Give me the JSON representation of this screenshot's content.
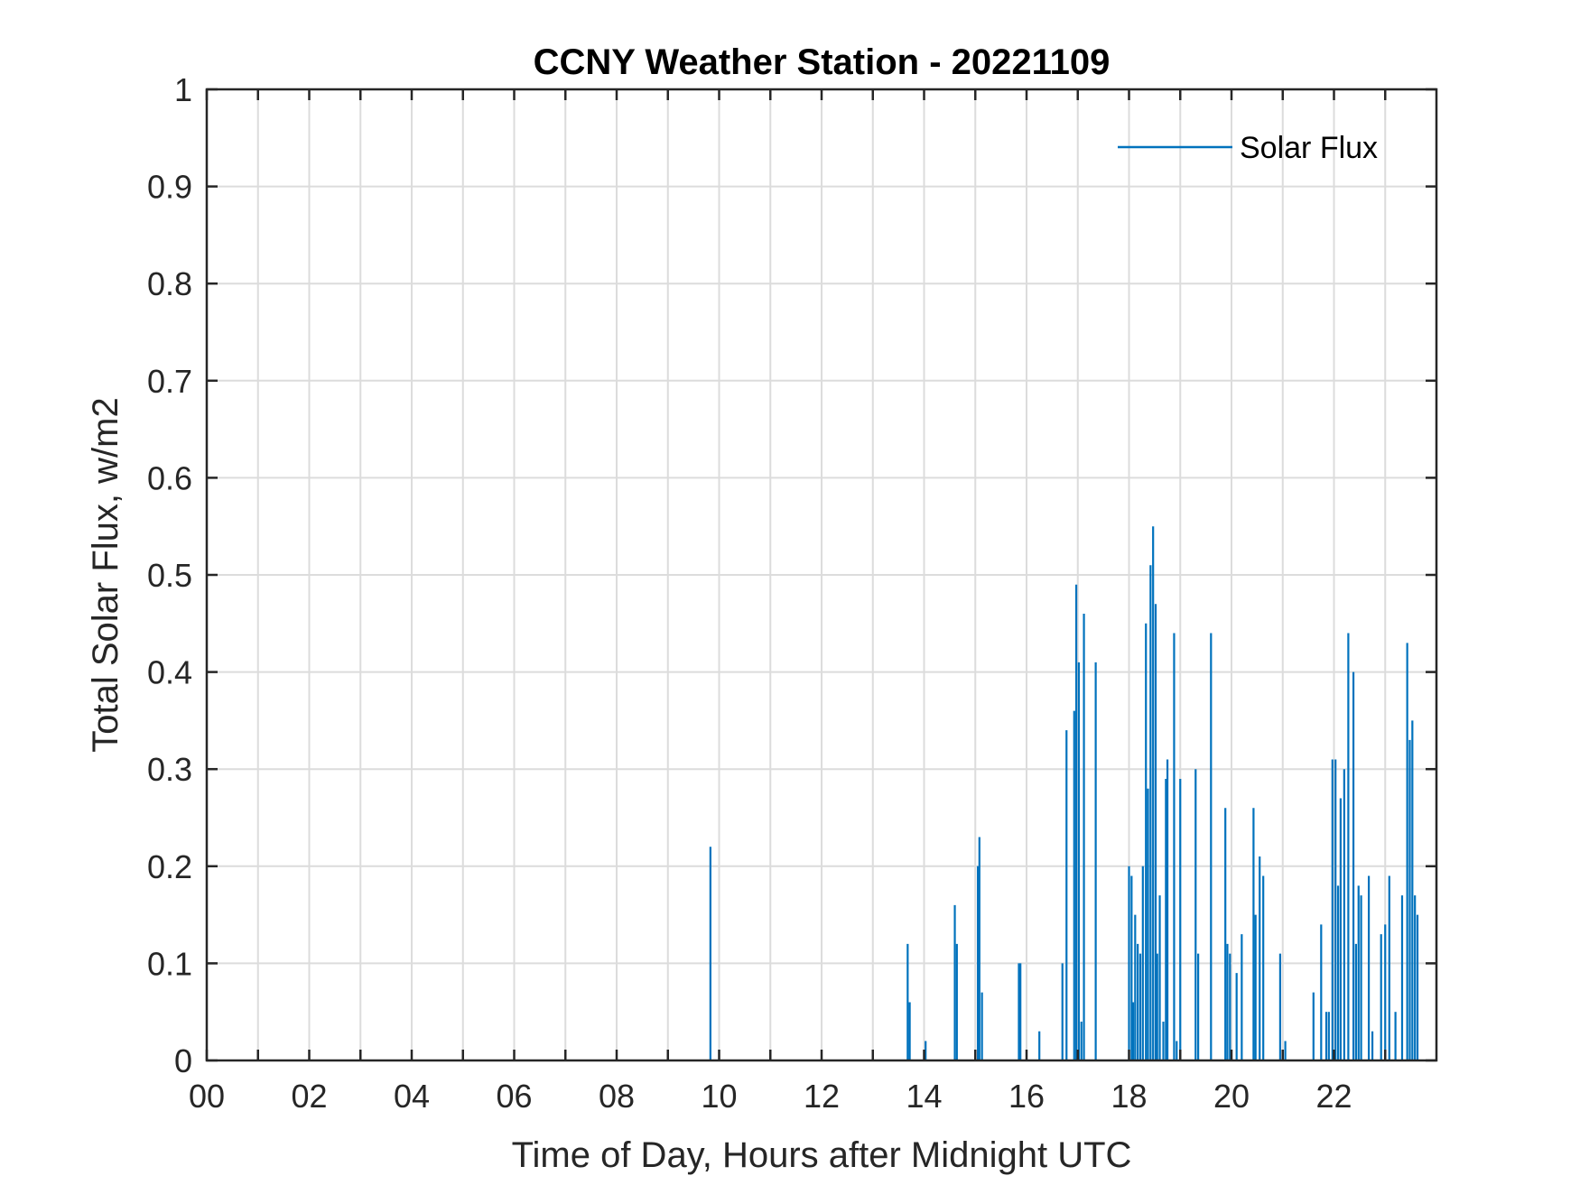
{
  "chart_data": {
    "type": "line",
    "title": "CCNY Weather Station - 20221109",
    "xlabel": "Time of Day, Hours after Midnight UTC",
    "ylabel": "Total Solar Flux, w/m2",
    "xlim": [
      0,
      24
    ],
    "ylim": [
      0,
      1
    ],
    "grid": true,
    "x_tick_labels": [
      "00",
      "02",
      "04",
      "06",
      "08",
      "10",
      "12",
      "14",
      "16",
      "18",
      "20",
      "22"
    ],
    "y_tick_labels": [
      "0",
      "0.1",
      "0.2",
      "0.3",
      "0.4",
      "0.5",
      "0.6",
      "0.7",
      "0.8",
      "0.9",
      "1"
    ],
    "legend": {
      "position": "top-right",
      "entries": [
        "Solar Flux"
      ]
    },
    "series": [
      {
        "name": "Solar Flux",
        "color": "#0072bd",
        "x": [
          9.83,
          13.68,
          13.72,
          14.03,
          14.6,
          14.64,
          15.05,
          15.08,
          15.13,
          15.85,
          15.88,
          16.25,
          16.7,
          16.78,
          16.93,
          16.97,
          17.02,
          17.07,
          17.12,
          17.35,
          18.0,
          18.05,
          18.08,
          18.12,
          18.17,
          18.22,
          18.27,
          18.33,
          18.37,
          18.42,
          18.47,
          18.52,
          18.55,
          18.6,
          18.67,
          18.72,
          18.75,
          18.88,
          18.93,
          19.0,
          19.3,
          19.35,
          19.6,
          19.88,
          19.92,
          19.97,
          20.1,
          20.2,
          20.43,
          20.47,
          20.55,
          20.62,
          20.95,
          21.05,
          21.6,
          21.75,
          21.85,
          21.9,
          21.97,
          22.03,
          22.08,
          22.13,
          22.2,
          22.28,
          22.38,
          22.43,
          22.48,
          22.53,
          22.68,
          22.75,
          22.92,
          23.0,
          23.08,
          23.2,
          23.33,
          23.43,
          23.48,
          23.53,
          23.58,
          23.63
        ],
        "values": [
          0.22,
          0.12,
          0.06,
          0.02,
          0.16,
          0.12,
          0.2,
          0.23,
          0.07,
          0.1,
          0.1,
          0.03,
          0.1,
          0.34,
          0.36,
          0.49,
          0.41,
          0.04,
          0.46,
          0.41,
          0.2,
          0.19,
          0.06,
          0.15,
          0.12,
          0.11,
          0.2,
          0.45,
          0.28,
          0.51,
          0.55,
          0.47,
          0.11,
          0.17,
          0.04,
          0.29,
          0.31,
          0.44,
          0.02,
          0.29,
          0.3,
          0.11,
          0.44,
          0.26,
          0.12,
          0.11,
          0.09,
          0.13,
          0.26,
          0.15,
          0.21,
          0.19,
          0.11,
          0.02,
          0.07,
          0.14,
          0.05,
          0.05,
          0.31,
          0.31,
          0.18,
          0.27,
          0.3,
          0.44,
          0.4,
          0.12,
          0.18,
          0.17,
          0.19,
          0.03,
          0.13,
          0.14,
          0.19,
          0.05,
          0.17,
          0.43,
          0.33,
          0.35,
          0.17,
          0.15
        ]
      }
    ]
  }
}
